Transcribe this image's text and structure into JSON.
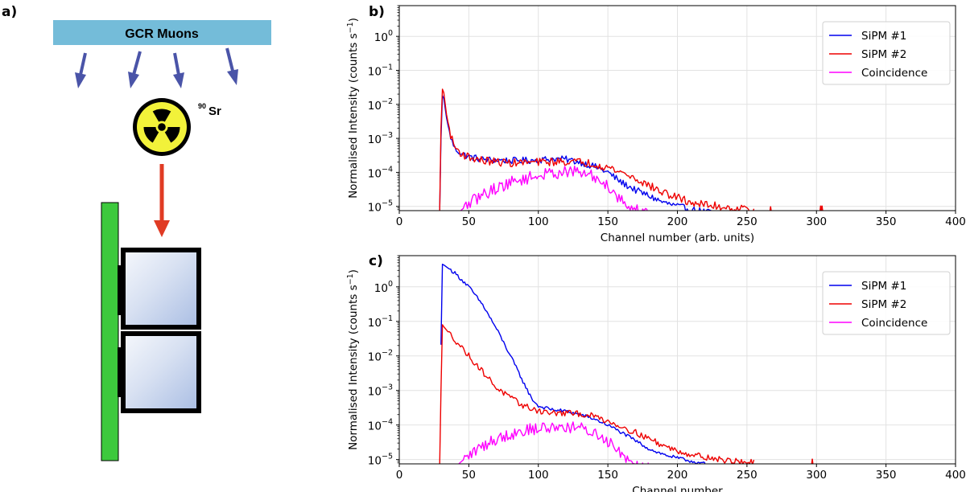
{
  "panels": {
    "a": {
      "label": "a)"
    },
    "b": {
      "label": "b)"
    },
    "c": {
      "label": "c)"
    }
  },
  "schematic": {
    "banner_label": "GCR Muons",
    "source_label_sup": "90",
    "source_label": "Sr",
    "colors": {
      "banner": "#74bcd9",
      "muon_arrow": "#4a54a8",
      "beta_arrow": "#e03b24",
      "pcb": "#3dc93d",
      "crystal": "#c9d6ee",
      "hazard": "#f2f23a"
    }
  },
  "colors": {
    "sipm1": "#0000ee",
    "sipm2": "#ee0000",
    "coincidence": "#ff00ff"
  },
  "chart_data": [
    {
      "id": "b",
      "type": "line",
      "log_y": true,
      "xlabel": "Channel number (arb. units)",
      "ylabel": "Normalised Intensity (counts s",
      "ylabel_sup": "−1",
      "ylabel_close": ")",
      "xlim": [
        0,
        400
      ],
      "ylim": [
        7.5e-06,
        8
      ],
      "xticks": [
        0,
        50,
        100,
        150,
        200,
        250,
        300,
        350,
        400
      ],
      "yticks": [
        {
          "v": 1e-05,
          "base": "10",
          "exp": "−5"
        },
        {
          "v": 0.0001,
          "base": "10",
          "exp": "−4"
        },
        {
          "v": 0.001,
          "base": "10",
          "exp": "−3"
        },
        {
          "v": 0.01,
          "base": "10",
          "exp": "−2"
        },
        {
          "v": 0.1,
          "base": "10",
          "exp": "−1"
        },
        {
          "v": 1,
          "base": "10",
          "exp": "0"
        }
      ],
      "legend": [
        "SiPM #1",
        "SiPM #2",
        "Coincidence"
      ],
      "legend_loc": "top-right",
      "grid": true,
      "series": [
        {
          "name": "SiPM #1",
          "color": "#0000ee",
          "noise": 0.1,
          "x": [
            29,
            30,
            31,
            32,
            34,
            36,
            38,
            40,
            45,
            50,
            60,
            80,
            100,
            110,
            120,
            130,
            140,
            150,
            160,
            170,
            180,
            190,
            200,
            210,
            220,
            230,
            240
          ],
          "y": [
            5e-06,
            0.001,
            0.018,
            0.015,
            0.004,
            0.0015,
            0.0008,
            0.0005,
            0.00035,
            0.00029,
            0.00024,
            0.00022,
            0.00023,
            0.00025,
            0.00024,
            0.0002,
            0.00015,
            0.0001,
            5e-05,
            3e-05,
            2e-05,
            1.3e-05,
            1e-05,
            8e-06,
            7e-06,
            6e-06,
            5e-06
          ]
        },
        {
          "name": "SiPM #2",
          "color": "#ee0000",
          "noise": 0.12,
          "x": [
            29,
            30,
            31,
            32,
            34,
            36,
            38,
            40,
            45,
            50,
            60,
            80,
            100,
            120,
            130,
            140,
            150,
            160,
            170,
            180,
            190,
            200,
            210,
            220,
            230,
            240,
            250,
            255
          ],
          "y": [
            5e-06,
            0.002,
            0.028,
            0.022,
            0.005,
            0.0018,
            0.0009,
            0.00055,
            0.00035,
            0.00028,
            0.00022,
            0.00019,
            0.0002,
            0.00021,
            0.0002,
            0.00018,
            0.00014,
            0.0001,
            6.5e-05,
            4e-05,
            2.5e-05,
            1.8e-05,
            1.3e-05,
            1.1e-05,
            1e-05,
            9e-06,
            8.5e-06,
            8e-06
          ]
        },
        {
          "name": "Coincidence",
          "color": "#ff00ff",
          "noise": 0.18,
          "x": [
            40,
            45,
            50,
            60,
            70,
            80,
            90,
            100,
            110,
            120,
            130,
            140,
            150,
            155,
            160,
            165,
            170,
            175,
            180
          ],
          "y": [
            5e-06,
            8e-06,
            1.2e-05,
            2.2e-05,
            3.5e-05,
            5e-05,
            6.5e-05,
            8e-05,
            9.5e-05,
            0.000105,
            0.0001,
            7.5e-05,
            4e-05,
            2.5e-05,
            1.5e-05,
            1e-05,
            8e-06,
            7e-06,
            6e-06
          ]
        }
      ],
      "spikes": [
        {
          "name": "SiPM #2",
          "x": [
            267,
            303,
            304
          ],
          "y": [
            1e-05,
            1.05e-05,
            1.05e-05
          ]
        }
      ]
    },
    {
      "id": "c",
      "type": "line",
      "log_y": true,
      "xlabel": "Channel number",
      "ylabel": "Normalised Intensity (counts s",
      "ylabel_sup": "−1",
      "ylabel_close": ")",
      "xlim": [
        0,
        400
      ],
      "ylim": [
        7.5e-06,
        8
      ],
      "xticks": [
        0,
        50,
        100,
        150,
        200,
        250,
        300,
        350,
        400
      ],
      "yticks": [
        {
          "v": 1e-05,
          "base": "10",
          "exp": "−5"
        },
        {
          "v": 0.0001,
          "base": "10",
          "exp": "−4"
        },
        {
          "v": 0.001,
          "base": "10",
          "exp": "−3"
        },
        {
          "v": 0.01,
          "base": "10",
          "exp": "−2"
        },
        {
          "v": 0.1,
          "base": "10",
          "exp": "−1"
        },
        {
          "v": 1,
          "base": "10",
          "exp": "0"
        }
      ],
      "legend": [
        "SiPM #1",
        "SiPM #2",
        "Coincidence"
      ],
      "legend_loc": "top-right",
      "grid": true,
      "series": [
        {
          "name": "SiPM #1",
          "color": "#0000ee",
          "noise": 0.05,
          "x": [
            30,
            31,
            32,
            40,
            50,
            60,
            70,
            80,
            90,
            95,
            100,
            110,
            120,
            130,
            140,
            150,
            160,
            170,
            180,
            190,
            200,
            210,
            220
          ],
          "y": [
            0.02,
            4.5,
            4.3,
            2.5,
            1.0,
            0.3,
            0.06,
            0.01,
            0.0015,
            0.0006,
            0.00035,
            0.00028,
            0.00025,
            0.0002,
            0.00015,
            0.0001,
            6e-05,
            3.5e-05,
            2e-05,
            1.4e-05,
            1.1e-05,
            9e-06,
            7.5e-06
          ]
        },
        {
          "name": "SiPM #2",
          "color": "#ee0000",
          "noise": 0.09,
          "x": [
            29,
            30,
            31,
            32,
            35,
            40,
            50,
            60,
            70,
            80,
            90,
            100,
            110,
            120,
            130,
            140,
            150,
            160,
            170,
            180,
            190,
            200,
            210,
            220,
            230,
            240,
            250,
            255
          ],
          "y": [
            5e-06,
            0.001,
            0.08,
            0.07,
            0.05,
            0.03,
            0.01,
            0.0035,
            0.0012,
            0.0006,
            0.00035,
            0.00026,
            0.00022,
            0.00022,
            0.00021,
            0.00018,
            0.00013,
            9e-05,
            6e-05,
            4e-05,
            2.5e-05,
            1.8e-05,
            1.4e-05,
            1.2e-05,
            1e-05,
            9e-06,
            8.5e-06,
            8e-06
          ]
        },
        {
          "name": "Coincidence",
          "color": "#ff00ff",
          "noise": 0.18,
          "x": [
            40,
            45,
            50,
            60,
            70,
            80,
            90,
            100,
            110,
            120,
            130,
            140,
            150,
            155,
            160,
            165,
            170,
            175,
            180
          ],
          "y": [
            6e-06,
            9e-06,
            1.3e-05,
            2.5e-05,
            4e-05,
            5.5e-05,
            7e-05,
            8e-05,
            8.5e-05,
            9e-05,
            8e-05,
            6e-05,
            3.5e-05,
            2.5e-05,
            1.5e-05,
            1e-05,
            8e-06,
            7e-06,
            6e-06
          ]
        }
      ],
      "spikes": [
        {
          "name": "SiPM #2",
          "x": [
            297
          ],
          "y": [
            1.05e-05
          ]
        }
      ]
    }
  ]
}
